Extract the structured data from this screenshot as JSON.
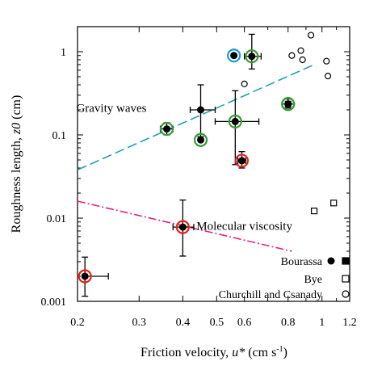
{
  "chart_data": {
    "type": "scatter",
    "title": "",
    "xlabel": "Friction velocity,",
    "xlabel_symbol": "u*",
    "xlabel_unit": "(cm s",
    "xlabel_unit_exp": "-1",
    "xlabel_unit_close": ")",
    "ylabel": "Roughness length,",
    "ylabel_symbol": "z0",
    "ylabel_unit": "(cm)",
    "xscale": "log",
    "yscale": "log",
    "xlim": [
      0.2,
      1.2
    ],
    "ylim": [
      0.001,
      2
    ],
    "grid": false,
    "xticks": [
      0.2,
      0.3,
      0.4,
      0.5,
      0.6,
      0.8,
      1,
      1.2
    ],
    "xtick_labels": [
      "0.2",
      "0.3",
      "0.4",
      "0.5",
      "0.6",
      "0.8",
      "1",
      "1.2"
    ],
    "yticks": [
      0.001,
      0.01,
      0.1,
      1
    ],
    "ytick_labels": [
      "0.001",
      "0.01",
      "0.1",
      "1"
    ],
    "legend_position": "bottom-right",
    "legend": [
      {
        "label": "Bourassa",
        "marker_filled": "circle",
        "marker_second": "square",
        "second_filled": true
      },
      {
        "label": "Bye",
        "marker_second": "square",
        "second_filled": false
      },
      {
        "label": "Churchill and Csanady",
        "marker_second": "circle",
        "second_filled": false
      }
    ],
    "lines": [
      {
        "name": "Gravity waves",
        "color": "#22a0b0",
        "style": "long-dash",
        "x": [
          0.2,
          0.95
        ],
        "y": [
          0.038,
          0.7
        ]
      },
      {
        "name": "Molecular viscosity",
        "color": "#e0208a",
        "style": "dash-dot",
        "x": [
          0.2,
          0.82
        ],
        "y": [
          0.016,
          0.004
        ]
      }
    ],
    "series": [
      {
        "name": "Bourassa",
        "marker": "filled-circle",
        "points": [
          {
            "x": 0.21,
            "y": 0.002,
            "ring": "red",
            "xerr": [
              0.21,
              0.245
            ],
            "yerr": [
              0.00115,
              0.0034
            ]
          },
          {
            "x": 0.4,
            "y": 0.0078,
            "ring": "red",
            "xerr": [
              0.375,
              0.43
            ],
            "yerr": [
              0.0035,
              0.0165
            ]
          },
          {
            "x": 0.36,
            "y": 0.118,
            "ring": "green",
            "xerr": [
              0.345,
              0.375
            ],
            "yerr": [
              0.1,
              0.14
            ]
          },
          {
            "x": 0.45,
            "y": 0.2,
            "ring": "",
            "xerr": [
              0.42,
              0.495
            ],
            "yerr": [
              0.095,
              0.4
            ]
          },
          {
            "x": 0.45,
            "y": 0.087,
            "ring": "green"
          },
          {
            "x": 0.565,
            "y": 0.145,
            "ring": "green",
            "xerr": [
              0.495,
              0.66
            ],
            "yerr": [
              0.044,
              0.34
            ]
          },
          {
            "x": 0.59,
            "y": 0.049,
            "ring": "red",
            "xerr": [
              0.575,
              0.605
            ],
            "yerr": [
              0.04,
              0.063
            ]
          },
          {
            "x": 0.56,
            "y": 0.9,
            "ring": "blue"
          },
          {
            "x": 0.63,
            "y": 0.88,
            "ring": "green",
            "xerr": [
              0.6,
              0.67
            ],
            "yerr": [
              0.62,
              1.62
            ]
          },
          {
            "x": 0.8,
            "y": 0.235,
            "ring": "green"
          }
        ]
      },
      {
        "name": "Bourassa (square)",
        "marker": "filled-square",
        "points": [
          {
            "x": 0.8,
            "y": 0.235,
            "ring": "green",
            "xerr": [
              0.77,
              0.83
            ],
            "yerr": [
              0.21,
              0.27
            ]
          }
        ]
      },
      {
        "name": "Bye",
        "marker": "open-square",
        "points": [
          {
            "x": 0.95,
            "y": 0.0122
          },
          {
            "x": 1.08,
            "y": 0.0152
          }
        ]
      },
      {
        "name": "Churchill and Csanady",
        "marker": "open-circle",
        "points": [
          {
            "x": 0.6,
            "y": 0.41
          },
          {
            "x": 0.82,
            "y": 0.9
          },
          {
            "x": 0.87,
            "y": 1.03
          },
          {
            "x": 0.88,
            "y": 0.8
          },
          {
            "x": 0.93,
            "y": 1.58
          },
          {
            "x": 1.03,
            "y": 0.77
          },
          {
            "x": 1.04,
            "y": 0.51
          }
        ]
      }
    ]
  },
  "colors": {
    "axis": "#000000",
    "ring_red": "#e8201c",
    "ring_green": "#3a9a3a",
    "ring_blue": "#1a9ad6",
    "gravity_waves": "#22a0b0",
    "molecular_viscosity": "#e0208a"
  }
}
